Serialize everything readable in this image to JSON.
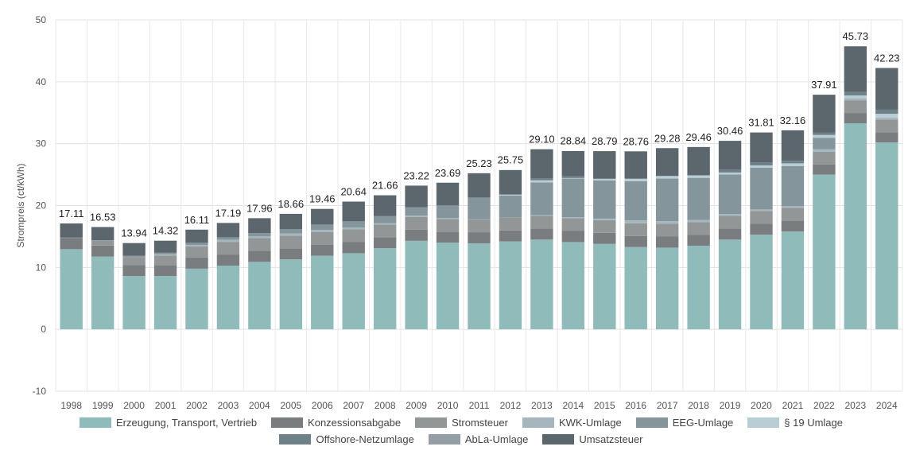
{
  "chart_data": {
    "type": "bar",
    "stacked": true,
    "ylabel": "Strompreis (ct/kWh)",
    "ylim": [
      -10,
      50
    ],
    "yticks": [
      -10,
      0,
      10,
      20,
      30,
      40,
      50
    ],
    "grid": true,
    "legend_position": "bottom",
    "categories": [
      "1998",
      "1999",
      "2000",
      "2001",
      "2002",
      "2003",
      "2004",
      "2005",
      "2006",
      "2007",
      "2008",
      "2009",
      "2010",
      "2011",
      "2012",
      "2013",
      "2014",
      "2015",
      "2016",
      "2017",
      "2018",
      "2019",
      "2020",
      "2021",
      "2022",
      "2023",
      "2024"
    ],
    "totals": [
      "17.11",
      "16.53",
      "13.94",
      "14.32",
      "16.11",
      "17.19",
      "17.96",
      "18.66",
      "19.46",
      "20.64",
      "21.66",
      "23.22",
      "23.69",
      "25.23",
      "25.75",
      "29.10",
      "28.84",
      "28.79",
      "28.76",
      "29.28",
      "29.46",
      "30.46",
      "31.81",
      "32.16",
      "37.91",
      "45.73",
      "42.23"
    ],
    "series": [
      {
        "name": "Erzeugung, Transport, Vertrieb",
        "color": "#8fbcbb",
        "values": [
          12.95,
          11.75,
          8.62,
          8.6,
          9.8,
          10.3,
          10.9,
          11.3,
          11.9,
          12.3,
          13.1,
          14.3,
          14.0,
          13.9,
          14.2,
          14.5,
          14.1,
          13.8,
          13.3,
          13.2,
          13.5,
          14.5,
          15.3,
          15.8,
          25.0,
          33.3,
          30.2
        ]
      },
      {
        "name": "Konzessionsabgabe",
        "color": "#7a7d80",
        "values": [
          1.79,
          1.79,
          1.79,
          1.79,
          1.79,
          1.79,
          1.79,
          1.79,
          1.79,
          1.79,
          1.79,
          1.79,
          1.79,
          1.79,
          1.79,
          1.79,
          1.79,
          1.79,
          1.79,
          1.79,
          1.79,
          1.79,
          1.79,
          1.79,
          1.66,
          1.66,
          1.66
        ]
      },
      {
        "name": "Stromsteuer",
        "color": "#939697",
        "values": [
          0,
          0.77,
          1.28,
          1.53,
          1.79,
          2.05,
          2.05,
          2.05,
          2.05,
          2.05,
          2.05,
          2.05,
          2.05,
          2.05,
          2.05,
          2.05,
          2.05,
          2.05,
          2.05,
          2.05,
          2.05,
          2.05,
          2.05,
          2.05,
          2.05,
          2.05,
          2.05
        ]
      },
      {
        "name": "KWK-Umlage",
        "color": "#a6b6bf",
        "values": [
          0,
          0,
          0,
          0.2,
          0.25,
          0.31,
          0.31,
          0.34,
          0.31,
          0.29,
          0.19,
          0.24,
          0.13,
          0.03,
          0.0,
          0.13,
          0.18,
          0.25,
          0.45,
          0.44,
          0.35,
          0.28,
          0.23,
          0.25,
          0.38,
          0.36,
          0.28
        ]
      },
      {
        "name": "EEG-Umlage",
        "color": "#85959c",
        "values": [
          0.08,
          0.1,
          0.2,
          0.25,
          0.35,
          0.42,
          0.51,
          0.69,
          0.88,
          1.02,
          1.16,
          1.33,
          2.05,
          3.53,
          3.59,
          5.28,
          6.24,
          6.17,
          6.35,
          6.88,
          6.79,
          6.41,
          6.76,
          6.5,
          1.87,
          0,
          0
        ]
      },
      {
        "name": "§ 19 Umlage",
        "color": "#b8cdd6",
        "values": [
          0,
          0,
          0,
          0,
          0,
          0,
          0,
          0,
          0,
          0,
          0,
          0,
          0,
          0,
          0.15,
          0.33,
          0.09,
          0.24,
          0.38,
          0.39,
          0.37,
          0.31,
          0.36,
          0.43,
          0.44,
          0.42,
          0.64
        ]
      },
      {
        "name": "Offshore-Netzumlage",
        "color": "#6e8188",
        "values": [
          0,
          0,
          0,
          0,
          0,
          0,
          0,
          0,
          0,
          0,
          0,
          0,
          0,
          0,
          0,
          0.25,
          0.25,
          0.04,
          0.04,
          0.04,
          0.04,
          0.42,
          0.42,
          0.4,
          0.42,
          0.59,
          0.66
        ]
      },
      {
        "name": "AbLa-Umlage",
        "color": "#939ea6",
        "values": [
          0,
          0,
          0,
          0,
          0,
          0,
          0,
          0,
          0,
          0,
          0,
          0,
          0,
          0,
          0,
          0.01,
          0.01,
          0.01,
          0.01,
          0.01,
          0.01,
          0.01,
          0.01,
          0.01,
          0,
          0,
          0
        ]
      },
      {
        "name": "Umsatzsteuer",
        "color": "#5c676d",
        "values": [
          2.29,
          2.12,
          2.05,
          1.95,
          2.13,
          2.32,
          2.4,
          2.49,
          2.53,
          3.19,
          3.37,
          3.51,
          3.67,
          3.93,
          3.96,
          4.76,
          4.1,
          4.44,
          4.39,
          4.48,
          4.56,
          4.69,
          4.89,
          4.93,
          6.09,
          7.35,
          6.74
        ]
      }
    ]
  }
}
